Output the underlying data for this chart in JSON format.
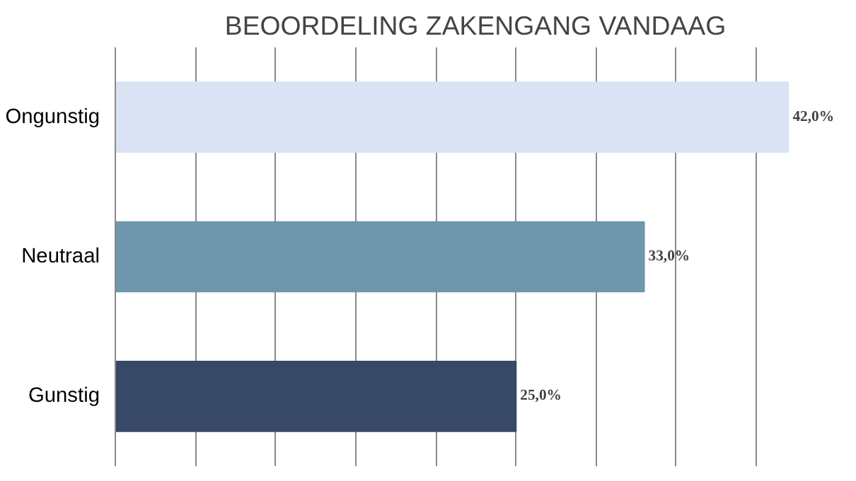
{
  "chart_data": {
    "type": "bar",
    "orientation": "horizontal",
    "title": "BEOORDELING ZAKENGANG VANDAAG",
    "categories": [
      "Ongunstig",
      "Neutraal",
      "Gunstig"
    ],
    "values": [
      42,
      33,
      25
    ],
    "colors": [
      "#dae3f3",
      "#6e97ad",
      "#374966"
    ],
    "value_labels": [
      "42,0%",
      "33,0%",
      "25,0%"
    ],
    "tick_labels": "y",
    "grid": "x"
  }
}
